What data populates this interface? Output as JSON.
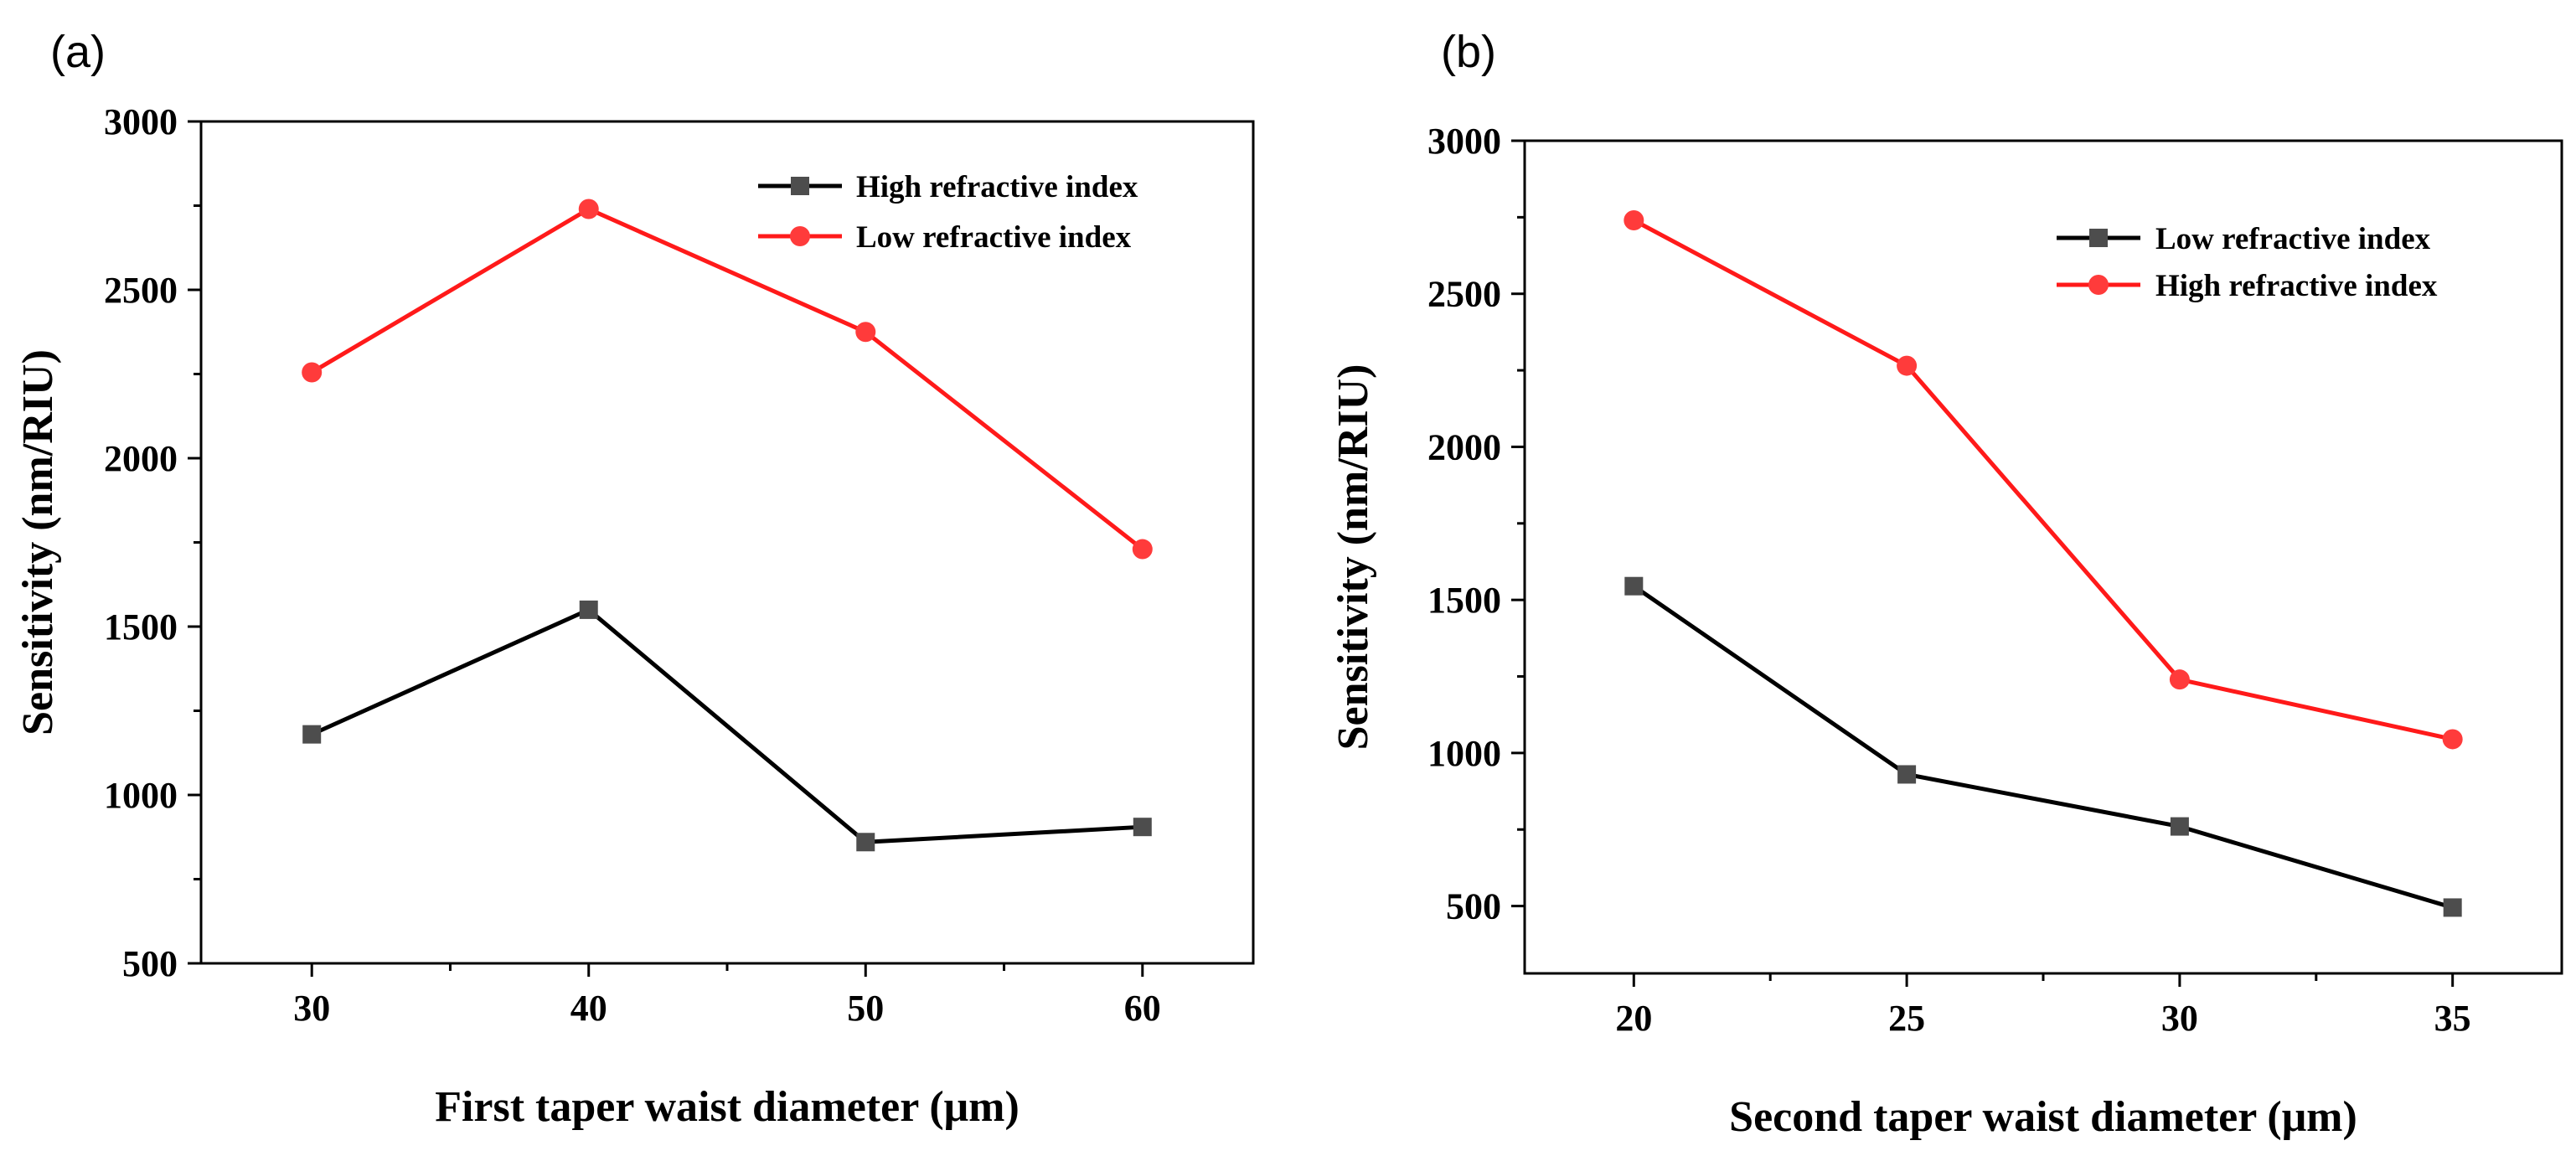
{
  "chart_data": [
    {
      "type": "line",
      "panel_label": "(a)",
      "xlabel": "First taper waist diameter (μm)",
      "ylabel": "Sensitivity (nm/RIU)",
      "x": [
        30,
        40,
        50,
        60
      ],
      "xticks": [
        "30",
        "40",
        "50",
        "60"
      ],
      "ylim": [
        500,
        3000
      ],
      "yticks": [
        500,
        1000,
        1500,
        2000,
        2500,
        3000
      ],
      "legend_position": "top-right",
      "series": [
        {
          "name": "High refractive index",
          "color": "#000000",
          "marker_color": "#4d4d4d",
          "marker": "square",
          "values": [
            1180,
            1550,
            860,
            905
          ]
        },
        {
          "name": "Low refractive index",
          "color": "#ff1a1a",
          "marker_color": "#ff3b3b",
          "marker": "circle",
          "values": [
            2255,
            2740,
            2375,
            1730
          ]
        }
      ]
    },
    {
      "type": "line",
      "panel_label": "(b)",
      "xlabel": "Second taper waist diameter (μm)",
      "ylabel": "Sensitivity (nm/RIU)",
      "x": [
        20,
        25,
        30,
        35
      ],
      "xticks": [
        "20",
        "25",
        "30",
        "35"
      ],
      "ylim": [
        280,
        3000
      ],
      "yticks": [
        500,
        1000,
        1500,
        2000,
        2500,
        3000
      ],
      "legend_position": "top-right",
      "series": [
        {
          "name": "Low refractive index",
          "color": "#000000",
          "marker_color": "#4d4d4d",
          "marker": "square",
          "values": [
            1545,
            930,
            760,
            495
          ]
        },
        {
          "name": "High refractive index",
          "color": "#ff1a1a",
          "marker_color": "#ff3b3b",
          "marker": "circle",
          "values": [
            2740,
            2265,
            1240,
            1045
          ]
        }
      ]
    }
  ]
}
